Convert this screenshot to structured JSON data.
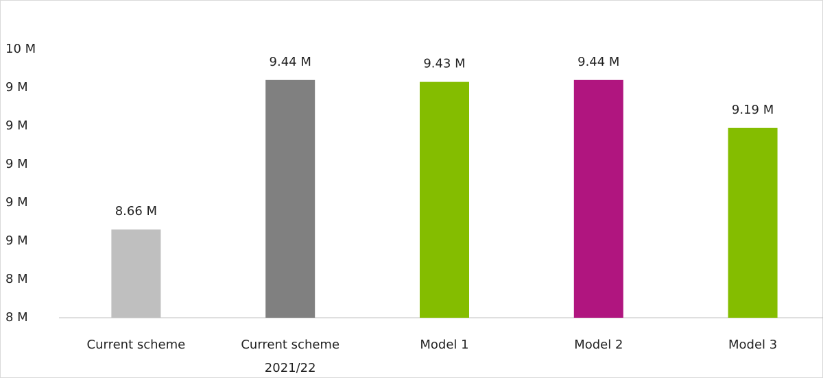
{
  "chart_data": {
    "type": "bar",
    "categories": [
      "Current scheme",
      "Current scheme 2021/22",
      "Model 1",
      "Model 2",
      "Model 3"
    ],
    "values": [
      8660000,
      9440000,
      9430000,
      9440000,
      9190000
    ],
    "value_labels": [
      "8.66 M",
      "9.44 M",
      "9.43 M",
      "9.44 M",
      "9.19 M"
    ],
    "colors": [
      "#bfbfbf",
      "#808080",
      "#84bd00",
      "#b0157f",
      "#84bd00"
    ],
    "ylim": [
      8200000,
      9600000
    ],
    "yticks": [
      {
        "value": 8200000,
        "label": "8 M"
      },
      {
        "value": 8400000,
        "label": "8 M"
      },
      {
        "value": 8600000,
        "label": "9 M"
      },
      {
        "value": 8800000,
        "label": "9 M"
      },
      {
        "value": 9000000,
        "label": "9 M"
      },
      {
        "value": 9200000,
        "label": "9 M"
      },
      {
        "value": 9400000,
        "label": "9 M"
      },
      {
        "value": 9600000,
        "label": "10 M"
      }
    ],
    "grid": false
  }
}
